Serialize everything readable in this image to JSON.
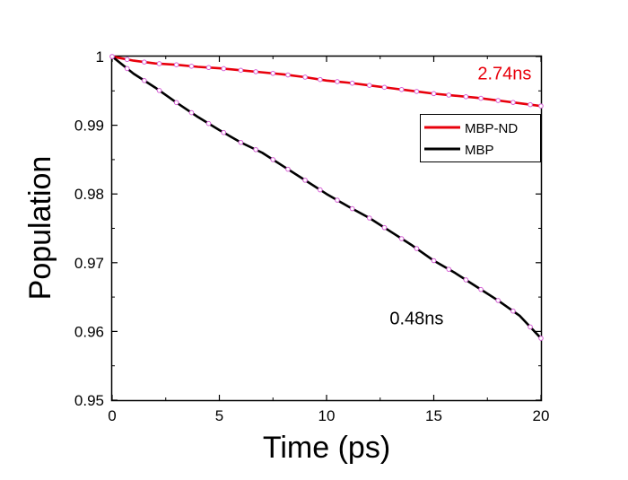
{
  "chart_data": {
    "type": "line",
    "xlabel": "Time (ps)",
    "ylabel": "Population",
    "xlim": [
      0,
      20
    ],
    "ylim": [
      0.95,
      1.0
    ],
    "x_ticks": [
      0,
      5,
      10,
      15,
      20
    ],
    "x_tick_labels": [
      "0",
      "5",
      "10",
      "15",
      "20"
    ],
    "y_ticks": [
      0.95,
      0.96,
      0.97,
      0.98,
      0.99,
      1.0
    ],
    "y_tick_labels": [
      "0.95",
      "0.96",
      "0.97",
      "0.98",
      "0.99",
      "1"
    ],
    "grid": false,
    "legend_position": "top-right",
    "series": [
      {
        "name": "MBP-ND",
        "color": "#e8000b",
        "x": [
          0,
          1,
          2,
          3,
          4,
          5,
          6,
          7,
          8,
          9,
          10,
          11,
          12,
          13,
          14,
          15,
          16,
          17,
          18,
          19,
          20
        ],
        "y": [
          1.0,
          0.9994,
          0.999,
          0.9988,
          0.9985,
          0.9983,
          0.998,
          0.9977,
          0.9974,
          0.997,
          0.9965,
          0.9962,
          0.9958,
          0.9954,
          0.995,
          0.9946,
          0.9943,
          0.994,
          0.9936,
          0.9932,
          0.9928
        ]
      },
      {
        "name": "MBP",
        "color": "#000000",
        "x": [
          0,
          1,
          2,
          3,
          4,
          5,
          6,
          7,
          8,
          9,
          10,
          11,
          12,
          13,
          14,
          15,
          16,
          17,
          18,
          19,
          20
        ],
        "y": [
          1.0,
          0.9975,
          0.9955,
          0.9933,
          0.9912,
          0.9893,
          0.9875,
          0.986,
          0.984,
          0.982,
          0.98,
          0.9782,
          0.9765,
          0.9745,
          0.9725,
          0.9703,
          0.9685,
          0.9665,
          0.9645,
          0.9623,
          0.959
        ]
      }
    ],
    "fit_markers": {
      "color": "#d65fd6",
      "mbp_nd_x": [
        0,
        0.7,
        1.5,
        2.2,
        3.0,
        3.7,
        4.5,
        5.2,
        6.0,
        6.7,
        7.5,
        8.2,
        9.0,
        9.7,
        10.5,
        11.2,
        12.0,
        12.7,
        13.5,
        14.2,
        15.0,
        15.7,
        16.5,
        17.2,
        18.0,
        18.7,
        19.5,
        20.0
      ],
      "mbp_x": [
        0,
        0.7,
        1.5,
        2.2,
        3.0,
        3.7,
        4.5,
        5.2,
        6.0,
        6.7,
        7.5,
        8.2,
        9.0,
        9.7,
        10.5,
        11.2,
        12.0,
        12.7,
        13.5,
        14.2,
        15.0,
        15.7,
        16.5,
        17.2,
        18.0,
        18.7,
        19.5,
        20.0
      ]
    },
    "annotations": [
      {
        "text": "2.74ns",
        "x": 18.3,
        "y": 0.9967,
        "color": "#e8000b"
      },
      {
        "text": "0.48ns",
        "x": 14.2,
        "y": 0.961,
        "color": "#000000"
      }
    ]
  }
}
